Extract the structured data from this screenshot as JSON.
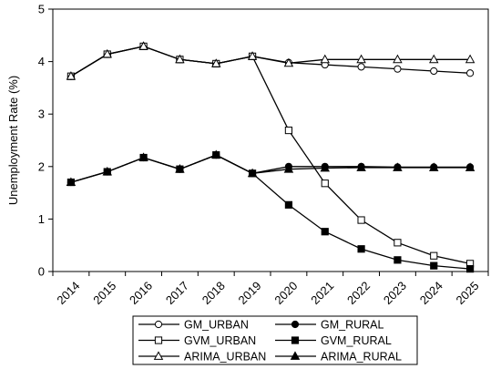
{
  "chart_data": {
    "type": "line",
    "title": "",
    "xlabel": "",
    "ylabel": "Unemployment Rate (%)",
    "ylim": [
      0,
      5
    ],
    "yticks": [
      0,
      1,
      2,
      3,
      4,
      5
    ],
    "grid": false,
    "legend_position": "bottom",
    "categories": [
      "2014",
      "2015",
      "2016",
      "2017",
      "2018",
      "2019",
      "2020",
      "2021",
      "2022",
      "2023",
      "2024",
      "2025"
    ],
    "series": [
      {
        "name": "GM_URBAN",
        "marker": "open-circle",
        "values": [
          3.72,
          4.14,
          4.29,
          4.04,
          3.96,
          4.1,
          3.98,
          3.94,
          3.9,
          3.86,
          3.82,
          3.78
        ]
      },
      {
        "name": "GM_RURAL",
        "marker": "filled-circle",
        "values": [
          1.7,
          1.9,
          2.17,
          1.95,
          2.22,
          1.87,
          2.0,
          2.0,
          2.0,
          1.99,
          1.99,
          1.99
        ]
      },
      {
        "name": "GVM_URBAN",
        "marker": "open-square",
        "values": [
          3.72,
          4.14,
          4.29,
          4.04,
          3.96,
          4.1,
          2.69,
          1.68,
          0.98,
          0.55,
          0.3,
          0.15
        ]
      },
      {
        "name": "GVM_RURAL",
        "marker": "filled-square",
        "values": [
          1.7,
          1.9,
          2.17,
          1.95,
          2.22,
          1.87,
          1.27,
          0.76,
          0.43,
          0.22,
          0.11,
          0.05
        ]
      },
      {
        "name": "ARIMA_URBAN",
        "marker": "open-triangle",
        "values": [
          3.72,
          4.14,
          4.29,
          4.04,
          3.96,
          4.1,
          3.97,
          4.04,
          4.04,
          4.04,
          4.04,
          4.04
        ]
      },
      {
        "name": "ARIMA_RURAL",
        "marker": "filled-triangle",
        "values": [
          1.7,
          1.9,
          2.17,
          1.95,
          2.22,
          1.87,
          1.95,
          1.97,
          1.98,
          1.98,
          1.98,
          1.98
        ]
      }
    ],
    "legend_order": [
      "GM_URBAN",
      "GM_RURAL",
      "GVM_URBAN",
      "GVM_RURAL",
      "ARIMA_URBAN",
      "ARIMA_RURAL"
    ],
    "colors": {
      "line": "#000000",
      "background": "#ffffff"
    }
  }
}
